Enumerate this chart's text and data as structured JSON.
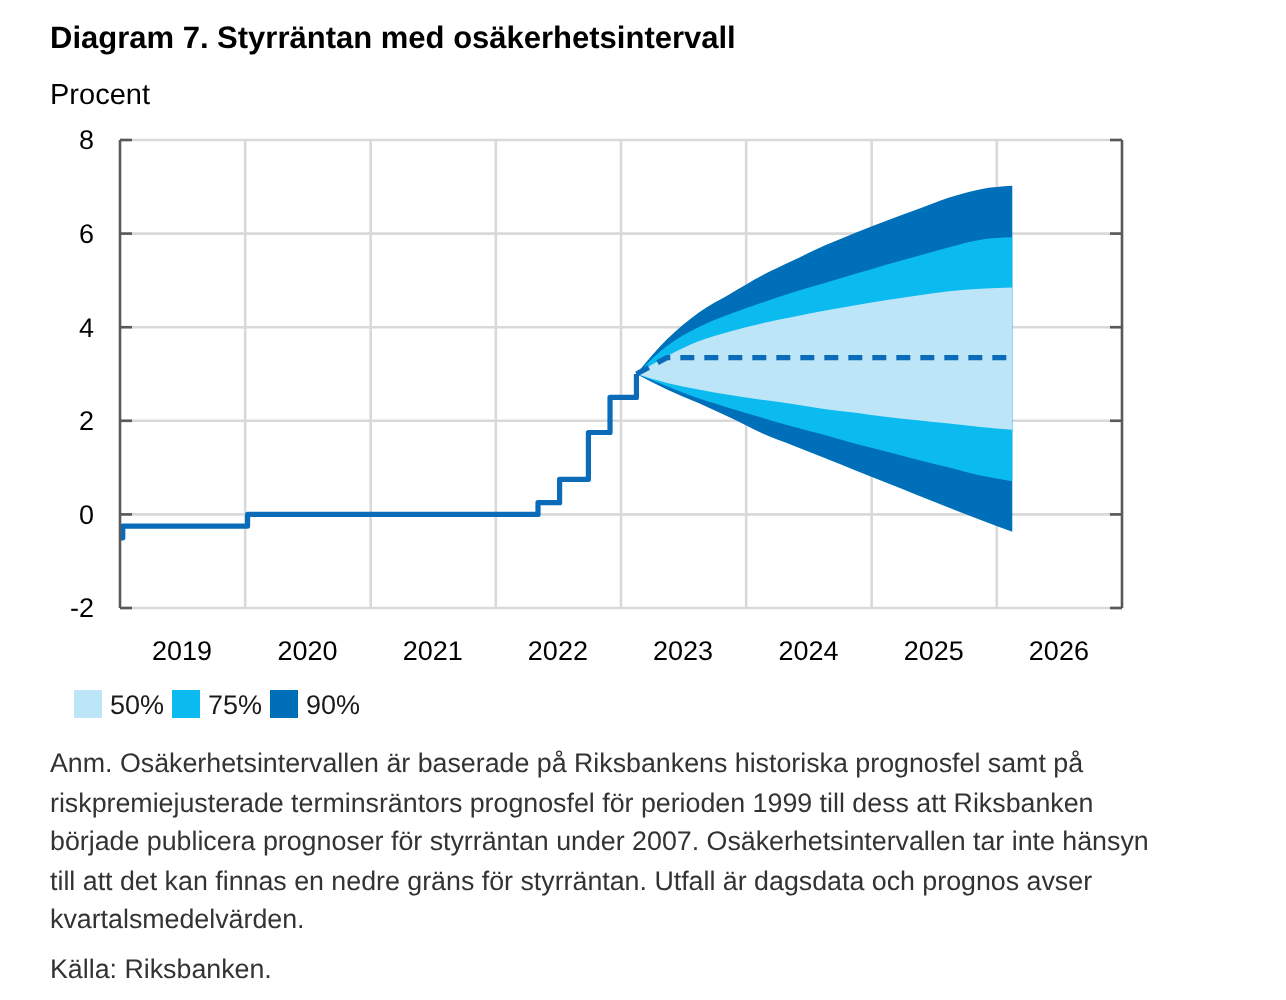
{
  "chart_data": {
    "type": "area",
    "title": "Diagram 7. Styrräntan med osäkerhetsintervall",
    "ylabel": "Procent",
    "x": [
      "2023-02-15",
      "2023-05-15",
      "2023-08-15",
      "2023-11-15",
      "2024-02-15",
      "2024-05-15",
      "2024-08-15",
      "2024-11-15",
      "2025-02-15",
      "2025-05-15",
      "2025-08-15",
      "2025-11-15",
      "2026-02-15"
    ],
    "series": [
      {
        "name": "50%",
        "color": "#bde5f8",
        "values": [
          null,
          null,
          null,
          null,
          null,
          null,
          null,
          null,
          null,
          null,
          null,
          null,
          null
        ],
        "lower": [
          3.0,
          2.81,
          2.67,
          2.55,
          2.45,
          2.36,
          2.25,
          2.17,
          2.08,
          2.01,
          1.94,
          1.87,
          1.81
        ],
        "upper": [
          3.0,
          3.38,
          3.7,
          3.91,
          4.08,
          4.22,
          4.35,
          4.47,
          4.58,
          4.68,
          4.77,
          4.82,
          4.85
        ]
      },
      {
        "name": "75%",
        "color": "#0bbbef",
        "values": [
          null,
          null,
          null,
          null,
          null,
          null,
          null,
          null,
          null,
          null,
          null,
          null,
          null
        ],
        "lower": [
          3.0,
          2.74,
          2.48,
          2.27,
          2.07,
          1.88,
          1.7,
          1.51,
          1.34,
          1.17,
          1.0,
          0.83,
          0.71
        ],
        "upper": [
          3.0,
          3.6,
          4.0,
          4.28,
          4.52,
          4.74,
          4.94,
          5.14,
          5.34,
          5.52,
          5.71,
          5.87,
          5.92
        ]
      },
      {
        "name": "90%",
        "color": "#006fba",
        "values": [
          null,
          null,
          null,
          null,
          null,
          null,
          null,
          null,
          null,
          null,
          null,
          null,
          null
        ],
        "lower": [
          3.0,
          2.67,
          2.38,
          2.07,
          1.74,
          1.48,
          1.21,
          0.94,
          0.67,
          0.41,
          0.14,
          -0.12,
          -0.37
        ],
        "upper": [
          3.0,
          3.74,
          4.31,
          4.71,
          5.1,
          5.42,
          5.74,
          6.02,
          6.28,
          6.52,
          6.77,
          6.95,
          7.02
        ]
      },
      {
        "type": "line",
        "line_style": "dashed",
        "color": "#0a6cb8",
        "values": [
          3.0,
          3.35,
          3.35,
          3.35,
          3.35,
          3.35,
          3.35,
          3.35,
          3.35,
          3.35,
          3.35,
          3.35,
          3.35
        ]
      },
      {
        "type": "step",
        "color": "#0a6cb8",
        "x": [
          "2019-01-02",
          "2019-01-09",
          "2020-01-08",
          "2022-05-04",
          "2022-07-06",
          "2022-09-28",
          "2022-11-30",
          "2023-02-15"
        ],
        "values": [
          -0.5,
          -0.25,
          0,
          0.25,
          0.75,
          1.75,
          2.5,
          3.0
        ]
      }
    ],
    "xlim": [
      "2019-01-01",
      "2027-01-01"
    ],
    "xticks": [
      {
        "value": "2019-07-01",
        "label": "2019"
      },
      {
        "value": "2020-01-01",
        "label": null
      },
      {
        "value": "2020-07-01",
        "label": "2020"
      },
      {
        "value": "2021-01-01",
        "label": null
      },
      {
        "value": "2021-07-01",
        "label": "2021"
      },
      {
        "value": "2022-01-01",
        "label": null
      },
      {
        "value": "2022-07-01",
        "label": "2022"
      },
      {
        "value": "2023-01-01",
        "label": null
      },
      {
        "value": "2023-07-01",
        "label": "2023"
      },
      {
        "value": "2024-01-01",
        "label": null
      },
      {
        "value": "2024-07-01",
        "label": "2024"
      },
      {
        "value": "2025-01-01",
        "label": null
      },
      {
        "value": "2025-07-01",
        "label": "2025"
      },
      {
        "value": "2026-01-01",
        "label": null
      },
      {
        "value": "2026-07-01",
        "label": "2026"
      }
    ],
    "ylim": [
      -2,
      8
    ],
    "yticks": [
      -2,
      0,
      2,
      4,
      6,
      8
    ],
    "grid": true,
    "legend": "bottom left",
    "annotations": [
      "Anm. Osäkerhetsintervallen är baserade på Riksbankens historiska prognosfel samt på riskpremiejusterade terminsräntors prognosfel för perioden 1999 till dess att Riksbanken började publicera prognoser för styrräntan under 2007. Osäkerhetsintervallen tar inte hänsyn till att det kan finnas en nedre gräns för styrräntan. Utfall är dagsdata och prognos avser kvartalsmedelvärden.",
      "Källa: Riksbanken."
    ]
  }
}
